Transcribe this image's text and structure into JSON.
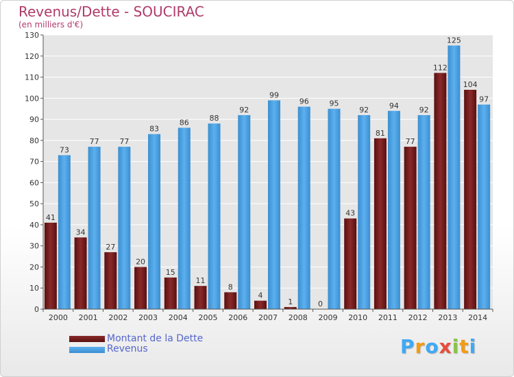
{
  "chart_data": {
    "type": "bar",
    "title": "Revenus/Dette - SOUCIRAC",
    "subtitle": "(en milliers d'€)",
    "categories": [
      "2000",
      "2001",
      "2002",
      "2003",
      "2004",
      "2005",
      "2006",
      "2007",
      "2008",
      "2009",
      "2010",
      "2011",
      "2012",
      "2013",
      "2014"
    ],
    "series": [
      {
        "name": "Montant de la Dette",
        "color": "#7a1e1e",
        "values": [
          41,
          34,
          27,
          20,
          15,
          11,
          8,
          4,
          1,
          0,
          43,
          81,
          77,
          112,
          104
        ]
      },
      {
        "name": "Revenus",
        "color": "#4a9fe0",
        "values": [
          73,
          77,
          77,
          83,
          86,
          88,
          92,
          99,
          96,
          95,
          92,
          94,
          92,
          125,
          97
        ]
      }
    ],
    "ylim": [
      0,
      130
    ],
    "yticks": [
      0,
      10,
      20,
      30,
      40,
      50,
      60,
      70,
      80,
      90,
      100,
      110,
      120,
      130
    ],
    "grid": true,
    "legend_position": "bottom-left"
  },
  "logo": {
    "letters": [
      "P",
      "r",
      "o",
      "x",
      "i",
      "t",
      "i"
    ],
    "colors": [
      "#3fa9f5",
      "#f39c12",
      "#3fa9f5",
      "#e74c3c",
      "#8bc34a",
      "#f39c12",
      "#3fa9f5"
    ]
  }
}
